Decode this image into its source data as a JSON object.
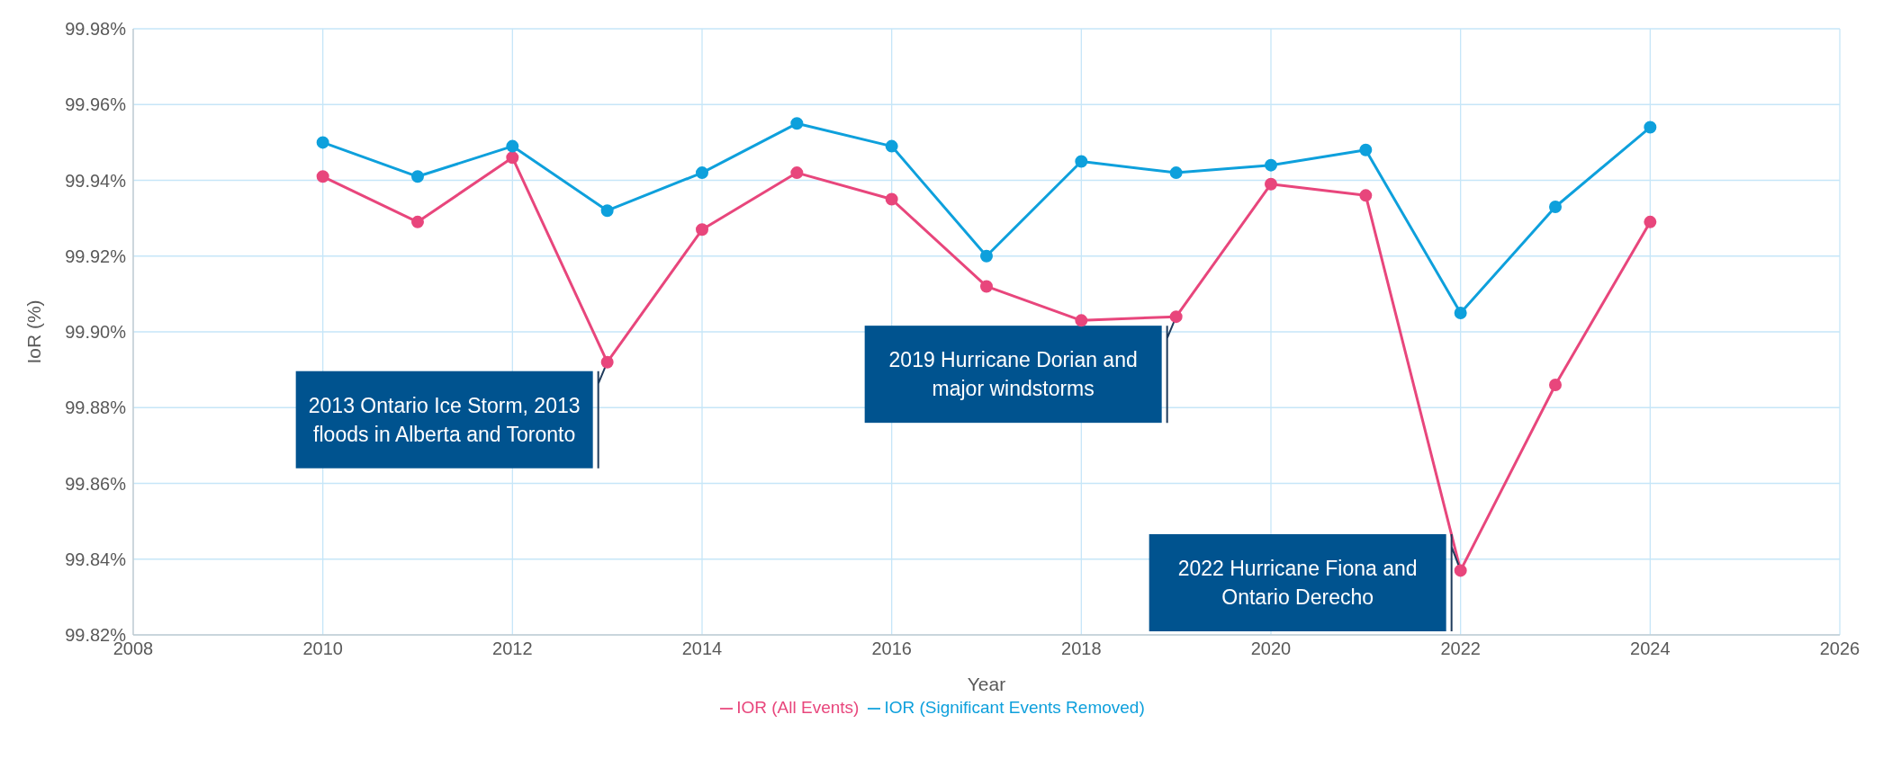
{
  "chart_data": {
    "type": "line",
    "xlabel": "Year",
    "ylabel": "IoR (%)",
    "x": [
      2010,
      2011,
      2012,
      2013,
      2014,
      2015,
      2016,
      2017,
      2018,
      2019,
      2020,
      2021,
      2022,
      2023,
      2024
    ],
    "series": [
      {
        "name": "IOR (All Events)",
        "color": "#e8467c",
        "values": [
          99.941,
          99.929,
          99.946,
          99.892,
          99.927,
          99.942,
          99.935,
          99.912,
          99.903,
          99.904,
          99.939,
          99.936,
          99.837,
          99.886,
          99.929
        ]
      },
      {
        "name": "IOR (Significant Events Removed)",
        "color": "#0ea0dc",
        "values": [
          99.95,
          99.941,
          99.949,
          99.932,
          99.942,
          99.955,
          99.949,
          99.92,
          99.945,
          99.942,
          99.944,
          99.948,
          99.905,
          99.933,
          99.954
        ]
      }
    ],
    "xlim": [
      2008,
      2026
    ],
    "xticks": [
      2008,
      2010,
      2012,
      2014,
      2016,
      2018,
      2020,
      2022,
      2024,
      2026
    ],
    "ylim": [
      99.82,
      99.98
    ],
    "yticks": [
      {
        "value": 99.82,
        "label": "99.82%"
      },
      {
        "value": 99.84,
        "label": "99.84%"
      },
      {
        "value": 99.86,
        "label": "99.86%"
      },
      {
        "value": 99.88,
        "label": "99.88%"
      },
      {
        "value": 99.9,
        "label": "99.90%"
      },
      {
        "value": 99.92,
        "label": "99.92%"
      },
      {
        "value": 99.94,
        "label": "99.94%"
      },
      {
        "value": 99.96,
        "label": "99.96%"
      },
      {
        "value": 99.98,
        "label": "99.98%"
      }
    ],
    "annotations": [
      {
        "text": "2013 Ontario Ice Storm, 2013 floods in Alberta and Toronto",
        "x": 2013,
        "y": 99.892
      },
      {
        "text": "2019 Hurricane Dorian and major windstorms",
        "x": 2019,
        "y": 99.904
      },
      {
        "text": "2022 Hurricane Fiona and Ontario Derecho",
        "x": 2022,
        "y": 99.837
      }
    ],
    "grid": true,
    "legend": "bottom",
    "marker": "circle",
    "line_style": "solid"
  }
}
